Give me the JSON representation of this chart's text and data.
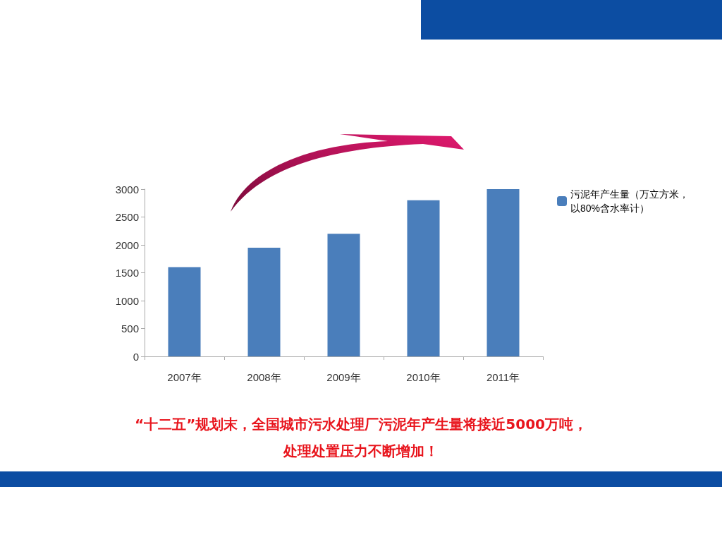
{
  "chart_data": {
    "type": "bar",
    "categories": [
      "2007年",
      "2008年",
      "2009年",
      "2010年",
      "2011年"
    ],
    "series": [
      {
        "name": "污泥年产生量（万立方米，以80%含水率计）",
        "color": "#4a7ebb",
        "values": [
          1600,
          1950,
          2200,
          2800,
          3000
        ]
      }
    ],
    "ylim": [
      0,
      3000
    ],
    "yticks": [
      0,
      500,
      1000,
      1500,
      2000,
      2500,
      3000
    ],
    "grid": false,
    "legend": "right",
    "annotations": [
      "“十二五”规划末，全国城市污水处理厂污泥年产生量将接近5000万吨，",
      "处理处置压力不断增加！"
    ]
  }
}
